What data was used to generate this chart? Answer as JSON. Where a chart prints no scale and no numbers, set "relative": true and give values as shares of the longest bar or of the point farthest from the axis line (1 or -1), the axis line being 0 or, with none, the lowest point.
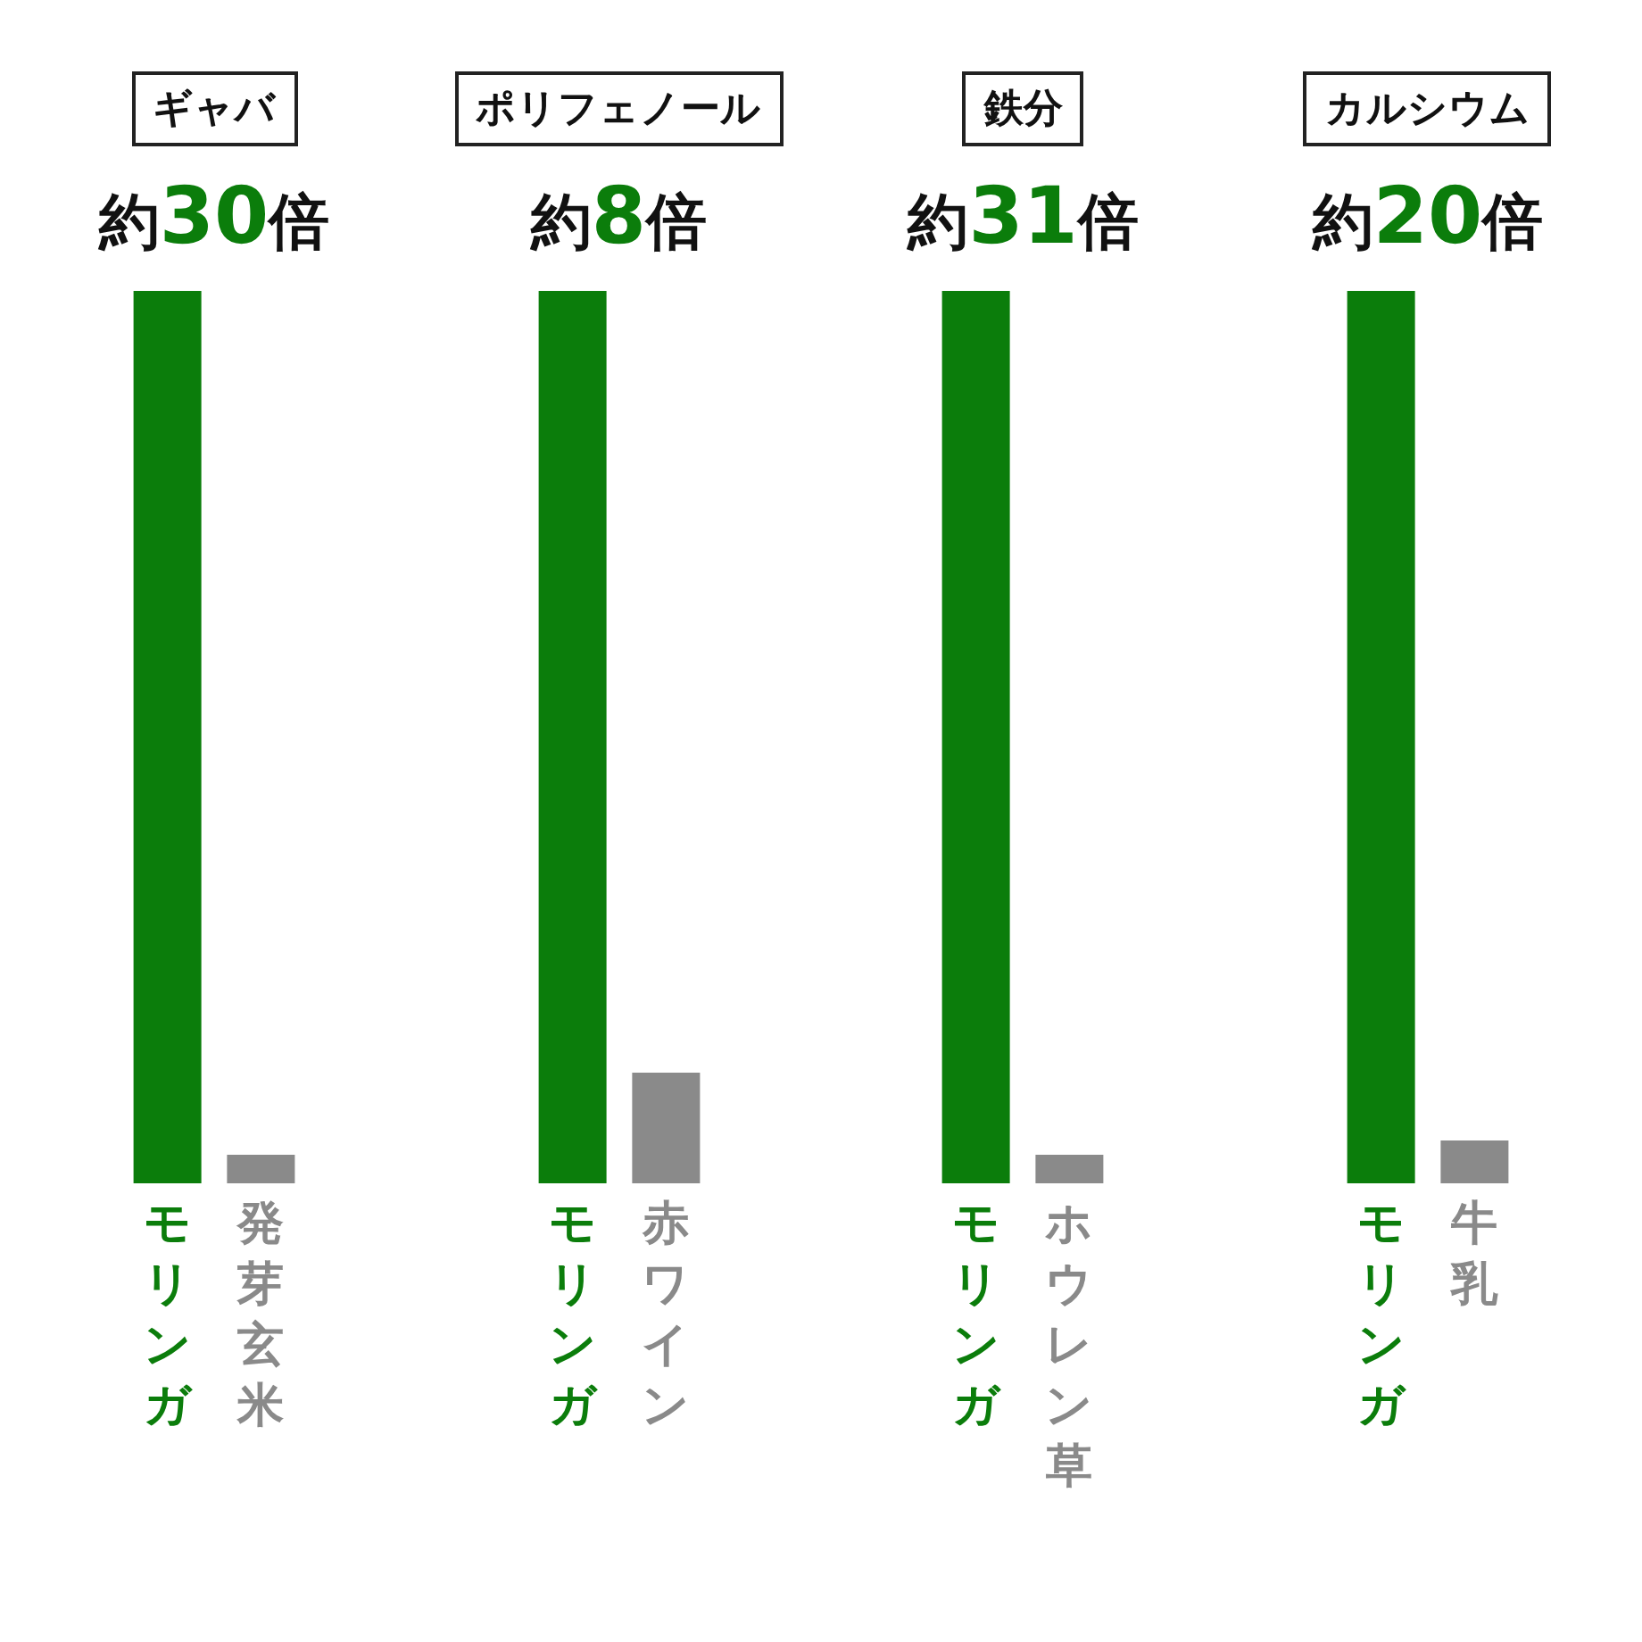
{
  "chart_data": [
    {
      "type": "bar",
      "title": "ギャバ",
      "subtitle": "約30倍",
      "relative": true,
      "categories": [
        "モリンガ",
        "発芽玄米"
      ],
      "values": [
        1,
        0.032
      ],
      "colors": [
        "#0b7d0b",
        "#8a8a8a"
      ]
    },
    {
      "type": "bar",
      "title": "ポリフェノール",
      "subtitle": "約8倍",
      "relative": true,
      "categories": [
        "モリンガ",
        "赤ワイン"
      ],
      "values": [
        1,
        0.124
      ],
      "colors": [
        "#0b7d0b",
        "#8a8a8a"
      ]
    },
    {
      "type": "bar",
      "title": "鉄分",
      "subtitle": "約31倍",
      "relative": true,
      "categories": [
        "モリンガ",
        "ホウレン草"
      ],
      "values": [
        1,
        0.032
      ],
      "colors": [
        "#0b7d0b",
        "#8a8a8a"
      ]
    },
    {
      "type": "bar",
      "title": "カルシウム",
      "subtitle": "約20倍",
      "relative": true,
      "categories": [
        "モリンガ",
        "牛乳"
      ],
      "values": [
        1,
        0.048
      ],
      "colors": [
        "#0b7d0b",
        "#8a8a8a"
      ]
    }
  ]
}
